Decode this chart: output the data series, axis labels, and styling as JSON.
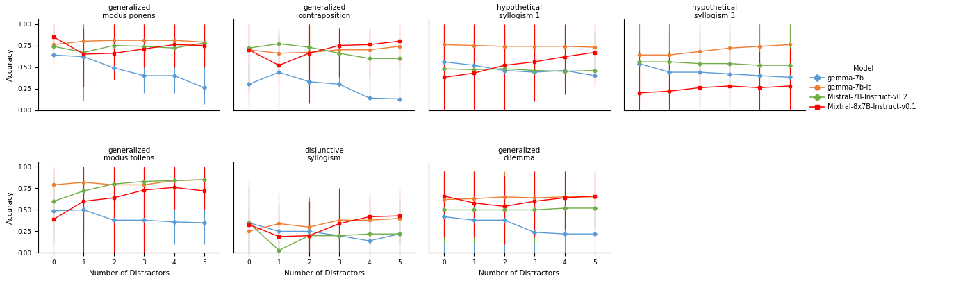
{
  "models": [
    "gemma-7b",
    "gemma-7b-it",
    "Mistral-7B-Instruct-v0.2",
    "Mixtral-8x7B-Instruct-v0.1"
  ],
  "model_colors": [
    "#5b9bd5",
    "#ed7d31",
    "#70ad47",
    "#ff0000"
  ],
  "model_markers": [
    "D",
    "o",
    "D",
    "s"
  ],
  "x_values": [
    0,
    1,
    2,
    3,
    4,
    5
  ],
  "subplots": [
    {
      "title": "generalized\nmodus ponens",
      "row": 0,
      "col": 0,
      "data": {
        "gemma-7b": {
          "mean": [
            0.64,
            0.62,
            0.49,
            0.4,
            0.4,
            0.26
          ],
          "lo": [
            0.64,
            0.42,
            0.49,
            0.2,
            0.2,
            0.07
          ],
          "hi": [
            0.8,
            0.88,
            0.75,
            0.73,
            0.73,
            0.62
          ]
        },
        "gemma-7b-it": {
          "mean": [
            0.76,
            0.8,
            0.81,
            0.81,
            0.81,
            0.79
          ],
          "lo": [
            0.76,
            0.11,
            0.6,
            0.6,
            0.61,
            0.57
          ],
          "hi": [
            1.0,
            1.0,
            1.0,
            1.0,
            1.0,
            1.0
          ]
        },
        "Mistral-7B-Instruct-v0.2": {
          "mean": [
            0.74,
            0.67,
            0.75,
            0.74,
            0.72,
            0.78
          ],
          "lo": [
            0.74,
            0.27,
            0.5,
            0.5,
            0.5,
            0.55
          ],
          "hi": [
            1.0,
            1.0,
            1.0,
            1.0,
            1.0,
            1.0
          ]
        },
        "Mixtral-8x7B-Instruct-v0.1": {
          "mean": [
            0.85,
            0.65,
            0.66,
            0.71,
            0.76,
            0.75
          ],
          "lo": [
            0.53,
            0.27,
            0.35,
            0.5,
            0.5,
            0.5
          ],
          "hi": [
            1.0,
            0.95,
            1.0,
            1.0,
            1.0,
            1.0
          ]
        }
      }
    },
    {
      "title": "generalized\ncontraposition",
      "row": 0,
      "col": 1,
      "data": {
        "gemma-7b": {
          "mean": [
            0.3,
            0.44,
            0.33,
            0.3,
            0.14,
            0.13
          ],
          "lo": [
            0.3,
            0.44,
            0.33,
            0.3,
            0.14,
            0.13
          ],
          "hi": [
            0.55,
            0.85,
            0.72,
            0.65,
            0.38,
            0.35
          ]
        },
        "gemma-7b-it": {
          "mean": [
            0.7,
            0.66,
            0.67,
            0.7,
            0.7,
            0.74
          ],
          "lo": [
            0.15,
            0.3,
            0.3,
            0.38,
            0.38,
            0.35
          ],
          "hi": [
            1.0,
            0.95,
            1.0,
            0.95,
            0.95,
            1.0
          ]
        },
        "Mistral-7B-Instruct-v0.2": {
          "mean": [
            0.72,
            0.77,
            0.73,
            0.66,
            0.6,
            0.6
          ],
          "lo": [
            0.22,
            0.5,
            0.5,
            0.4,
            0.22,
            0.22
          ],
          "hi": [
            1.0,
            0.95,
            1.0,
            0.9,
            0.85,
            0.85
          ]
        },
        "Mixtral-8x7B-Instruct-v0.1": {
          "mean": [
            0.7,
            0.52,
            0.66,
            0.75,
            0.76,
            0.8
          ],
          "lo": [
            0.0,
            0.0,
            0.08,
            0.38,
            0.38,
            0.5
          ],
          "hi": [
            1.0,
            0.9,
            1.0,
            0.95,
            0.95,
            1.0
          ]
        }
      }
    },
    {
      "title": "hypothetical\nsyllogism 1",
      "row": 0,
      "col": 2,
      "data": {
        "gemma-7b": {
          "mean": [
            0.56,
            0.52,
            0.46,
            0.44,
            0.46,
            0.4
          ],
          "lo": [
            0.56,
            0.52,
            0.46,
            0.44,
            0.46,
            0.4
          ],
          "hi": [
            1.0,
            0.97,
            0.95,
            0.95,
            0.95,
            0.9
          ]
        },
        "gemma-7b-it": {
          "mean": [
            0.76,
            0.75,
            0.74,
            0.74,
            0.74,
            0.73
          ],
          "lo": [
            0.2,
            0.3,
            0.3,
            0.3,
            0.3,
            0.28
          ],
          "hi": [
            1.0,
            1.0,
            1.0,
            1.0,
            1.0,
            1.0
          ]
        },
        "Mistral-7B-Instruct-v0.2": {
          "mean": [
            0.48,
            0.47,
            0.48,
            0.46,
            0.45,
            0.46
          ],
          "lo": [
            0.48,
            0.47,
            0.48,
            0.46,
            0.45,
            0.46
          ],
          "hi": [
            1.0,
            0.95,
            0.95,
            0.9,
            0.9,
            0.9
          ]
        },
        "Mixtral-8x7B-Instruct-v0.1": {
          "mean": [
            0.38,
            0.43,
            0.52,
            0.56,
            0.62,
            0.67
          ],
          "lo": [
            0.0,
            0.0,
            0.0,
            0.1,
            0.18,
            0.28
          ],
          "hi": [
            1.0,
            1.0,
            1.0,
            1.0,
            1.0,
            1.0
          ]
        }
      }
    },
    {
      "title": "hypothetical\nsyllogism 3",
      "row": 0,
      "col": 3,
      "data": {
        "gemma-7b": {
          "mean": [
            0.54,
            0.44,
            0.44,
            0.42,
            0.4,
            0.38
          ],
          "lo": [
            0.54,
            0.44,
            0.44,
            0.42,
            0.4,
            0.38
          ],
          "hi": [
            1.0,
            0.9,
            0.92,
            0.9,
            0.9,
            0.85
          ]
        },
        "gemma-7b-it": {
          "mean": [
            0.64,
            0.64,
            0.68,
            0.72,
            0.74,
            0.76
          ],
          "lo": [
            0.1,
            0.15,
            0.22,
            0.28,
            0.28,
            0.33
          ],
          "hi": [
            1.0,
            1.0,
            1.0,
            1.0,
            1.0,
            1.0
          ]
        },
        "Mistral-7B-Instruct-v0.2": {
          "mean": [
            0.56,
            0.56,
            0.54,
            0.54,
            0.52,
            0.52
          ],
          "lo": [
            0.1,
            0.1,
            0.1,
            0.1,
            0.18,
            0.18
          ],
          "hi": [
            1.0,
            1.0,
            1.0,
            1.0,
            1.0,
            1.0
          ]
        },
        "Mixtral-8x7B-Instruct-v0.1": {
          "mean": [
            0.2,
            0.22,
            0.26,
            0.28,
            0.26,
            0.28
          ],
          "lo": [
            0.0,
            0.0,
            0.0,
            0.0,
            0.0,
            0.0
          ],
          "hi": [
            0.68,
            0.68,
            0.72,
            0.72,
            0.68,
            0.72
          ]
        }
      }
    },
    {
      "title": "generalized\nmodus tollens",
      "row": 1,
      "col": 0,
      "data": {
        "gemma-7b": {
          "mean": [
            0.49,
            0.5,
            0.38,
            0.38,
            0.36,
            0.35
          ],
          "lo": [
            0.1,
            0.12,
            0.1,
            0.1,
            0.1,
            0.1
          ],
          "hi": [
            0.88,
            0.88,
            0.55,
            0.55,
            0.52,
            0.52
          ]
        },
        "gemma-7b-it": {
          "mean": [
            0.79,
            0.82,
            0.79,
            0.79,
            0.84,
            0.85
          ],
          "lo": [
            0.22,
            0.3,
            0.18,
            0.18,
            0.5,
            0.55
          ],
          "hi": [
            1.0,
            1.0,
            1.0,
            1.0,
            1.0,
            1.0
          ]
        },
        "Mistral-7B-Instruct-v0.2": {
          "mean": [
            0.6,
            0.72,
            0.8,
            0.83,
            0.84,
            0.85
          ],
          "lo": [
            0.1,
            0.18,
            0.5,
            0.55,
            0.5,
            0.55
          ],
          "hi": [
            0.95,
            1.0,
            1.0,
            1.0,
            1.0,
            1.0
          ]
        },
        "Mixtral-8x7B-Instruct-v0.1": {
          "mean": [
            0.39,
            0.6,
            0.64,
            0.73,
            0.76,
            0.72
          ],
          "lo": [
            0.0,
            0.0,
            0.0,
            0.0,
            0.5,
            0.5
          ],
          "hi": [
            1.0,
            1.0,
            1.0,
            1.0,
            1.0,
            1.0
          ]
        }
      }
    },
    {
      "title": "disjunctive\nsyllogism",
      "row": 1,
      "col": 1,
      "data": {
        "gemma-7b": {
          "mean": [
            0.35,
            0.25,
            0.25,
            0.2,
            0.14,
            0.22
          ],
          "lo": [
            0.0,
            0.0,
            0.0,
            0.0,
            0.0,
            0.0
          ],
          "hi": [
            0.8,
            0.55,
            0.55,
            0.55,
            0.5,
            0.6
          ]
        },
        "gemma-7b-it": {
          "mean": [
            0.25,
            0.34,
            0.3,
            0.38,
            0.38,
            0.4
          ],
          "lo": [
            0.0,
            0.1,
            0.0,
            0.1,
            0.1,
            0.1
          ],
          "hi": [
            0.5,
            0.55,
            0.6,
            0.6,
            0.6,
            0.65
          ]
        },
        "Mistral-7B-Instruct-v0.2": {
          "mean": [
            0.35,
            0.03,
            0.2,
            0.2,
            0.22,
            0.22
          ],
          "lo": [
            0.0,
            0.0,
            0.0,
            0.0,
            0.0,
            0.0
          ],
          "hi": [
            0.85,
            0.15,
            0.65,
            0.7,
            0.7,
            0.7
          ]
        },
        "Mixtral-8x7B-Instruct-v0.1": {
          "mean": [
            0.33,
            0.19,
            0.2,
            0.34,
            0.42,
            0.43
          ],
          "lo": [
            0.0,
            0.0,
            0.0,
            0.0,
            0.1,
            0.1
          ],
          "hi": [
            0.75,
            0.7,
            0.6,
            0.75,
            0.7,
            0.75
          ]
        }
      }
    },
    {
      "title": "generalized\ndilemma",
      "row": 1,
      "col": 2,
      "data": {
        "gemma-7b": {
          "mean": [
            0.42,
            0.38,
            0.38,
            0.24,
            0.22,
            0.22
          ],
          "lo": [
            0.0,
            0.0,
            0.0,
            0.0,
            0.0,
            0.0
          ],
          "hi": [
            0.9,
            0.85,
            0.8,
            0.6,
            0.55,
            0.55
          ]
        },
        "gemma-7b-it": {
          "mean": [
            0.62,
            0.63,
            0.65,
            0.64,
            0.65,
            0.65
          ],
          "lo": [
            0.2,
            0.28,
            0.28,
            0.28,
            0.28,
            0.28
          ],
          "hi": [
            0.9,
            0.95,
            0.95,
            0.95,
            0.95,
            0.95
          ]
        },
        "Mistral-7B-Instruct-v0.2": {
          "mean": [
            0.5,
            0.5,
            0.5,
            0.5,
            0.52,
            0.52
          ],
          "lo": [
            0.1,
            0.1,
            0.1,
            0.1,
            0.18,
            0.18
          ],
          "hi": [
            0.95,
            0.95,
            0.9,
            0.9,
            0.9,
            0.9
          ]
        },
        "Mixtral-8x7B-Instruct-v0.1": {
          "mean": [
            0.66,
            0.58,
            0.54,
            0.6,
            0.64,
            0.66
          ],
          "lo": [
            0.18,
            0.18,
            0.1,
            0.18,
            0.28,
            0.28
          ],
          "hi": [
            0.95,
            0.95,
            0.9,
            0.95,
            0.95,
            0.95
          ]
        }
      }
    }
  ],
  "legend_title": "Model",
  "ylabel": "Accuracy",
  "xlabel": "Number of Distractors",
  "ylim": [
    0.0,
    1.05
  ],
  "yticks": [
    0.0,
    0.25,
    0.5,
    0.75,
    1.0
  ],
  "ytick_labels": [
    "0.00",
    "0.25",
    "0.50",
    "0.75",
    "1.00"
  ],
  "background_color": "#ffffff"
}
